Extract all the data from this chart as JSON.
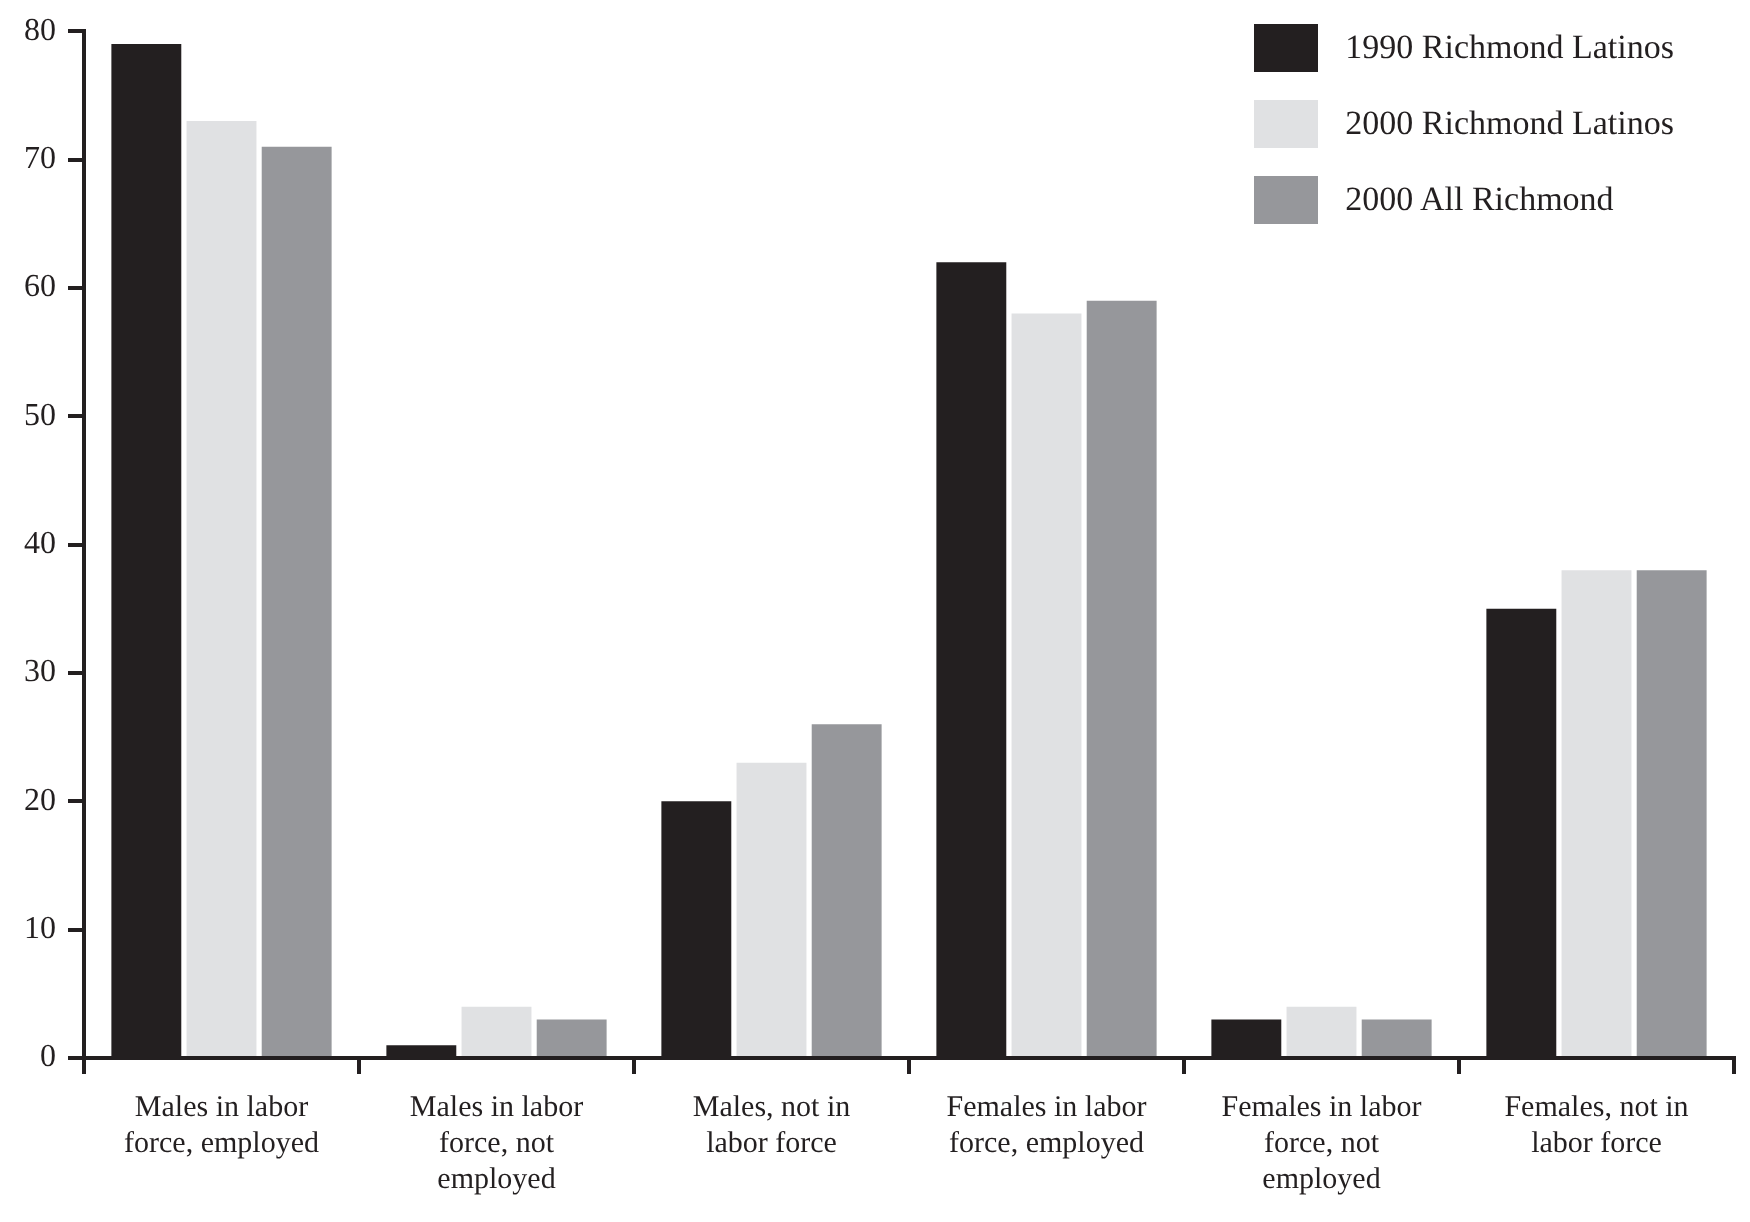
{
  "chart_data": {
    "type": "bar",
    "categories": [
      "Males in labor force, employed",
      "Males in labor force, not employed",
      "Males, not in labor force",
      "Females in labor force, employed",
      "Females in labor force, not employed",
      "Females, not in labor force"
    ],
    "series": [
      {
        "name": "1990 Richmond Latinos",
        "color": "#231f20",
        "values": [
          79,
          1,
          20,
          62,
          3,
          35
        ]
      },
      {
        "name": "2000 Richmond Latinos",
        "color": "#e0e1e3",
        "values": [
          73,
          4,
          23,
          58,
          4,
          38
        ]
      },
      {
        "name": "2000 All Richmond",
        "color": "#96979b",
        "values": [
          71,
          3,
          26,
          59,
          3,
          38
        ]
      }
    ],
    "ylim": [
      0,
      80
    ],
    "yticks": [
      0,
      10,
      20,
      30,
      40,
      50,
      60,
      70,
      80
    ],
    "grid": false,
    "legend": "top right"
  }
}
